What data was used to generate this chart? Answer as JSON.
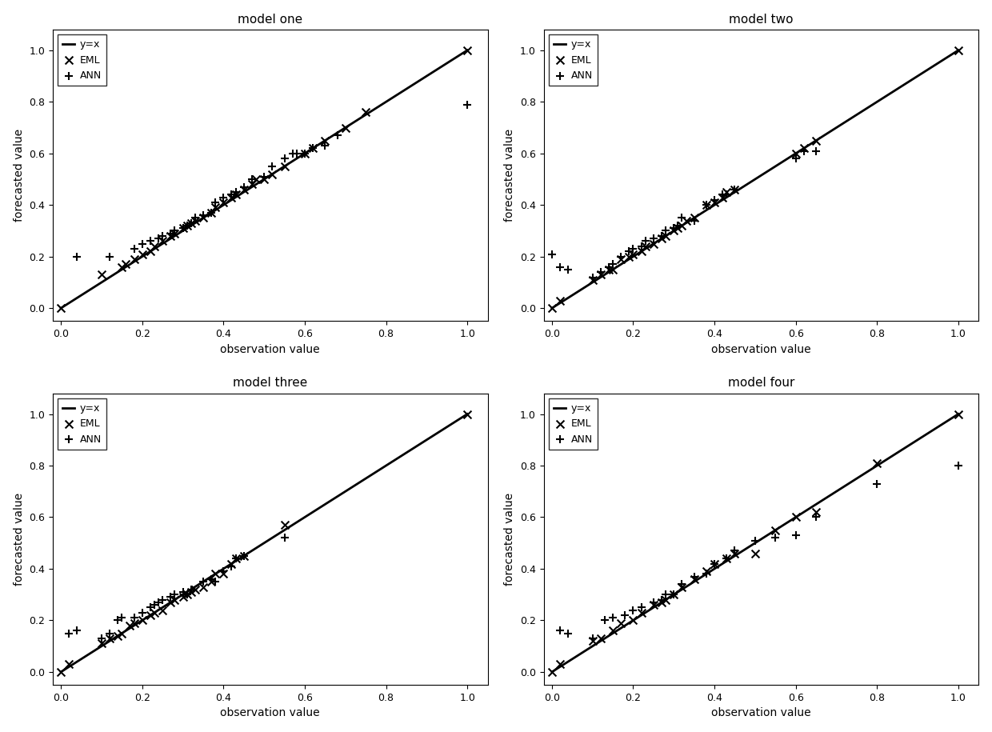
{
  "models": [
    "model one",
    "model two",
    "model three",
    "model four"
  ],
  "xlabel": "observation value",
  "ylabel": "forecasted value",
  "xlim": [
    -0.02,
    1.05
  ],
  "ylim": [
    -0.05,
    1.08
  ],
  "line_label": "y=x",
  "eml_label": "EML",
  "ann_label": "ANN",
  "model_one": {
    "eml_x": [
      0.0,
      0.1,
      0.15,
      0.16,
      0.18,
      0.2,
      0.22,
      0.23,
      0.25,
      0.27,
      0.28,
      0.3,
      0.31,
      0.32,
      0.33,
      0.35,
      0.37,
      0.38,
      0.4,
      0.42,
      0.43,
      0.45,
      0.47,
      0.48,
      0.5,
      0.52,
      0.55,
      0.6,
      0.62,
      0.65,
      0.7,
      0.75,
      1.0
    ],
    "eml_y": [
      0.0,
      0.13,
      0.16,
      0.17,
      0.19,
      0.21,
      0.22,
      0.24,
      0.26,
      0.28,
      0.29,
      0.31,
      0.32,
      0.33,
      0.34,
      0.35,
      0.37,
      0.39,
      0.41,
      0.43,
      0.44,
      0.46,
      0.48,
      0.5,
      0.5,
      0.52,
      0.55,
      0.6,
      0.62,
      0.65,
      0.7,
      0.76,
      1.0
    ],
    "ann_x": [
      0.04,
      0.12,
      0.18,
      0.2,
      0.22,
      0.24,
      0.25,
      0.27,
      0.28,
      0.3,
      0.31,
      0.32,
      0.33,
      0.35,
      0.37,
      0.38,
      0.4,
      0.42,
      0.43,
      0.45,
      0.47,
      0.5,
      0.52,
      0.55,
      0.57,
      0.58,
      0.6,
      0.62,
      0.65,
      0.68,
      1.0
    ],
    "ann_y": [
      0.2,
      0.2,
      0.23,
      0.25,
      0.26,
      0.27,
      0.28,
      0.29,
      0.3,
      0.31,
      0.32,
      0.33,
      0.35,
      0.36,
      0.37,
      0.41,
      0.43,
      0.44,
      0.45,
      0.47,
      0.5,
      0.51,
      0.55,
      0.58,
      0.6,
      0.6,
      0.6,
      0.62,
      0.63,
      0.67,
      0.79
    ]
  },
  "model_two": {
    "eml_x": [
      0.0,
      0.02,
      0.1,
      0.12,
      0.14,
      0.15,
      0.17,
      0.19,
      0.2,
      0.22,
      0.23,
      0.25,
      0.27,
      0.28,
      0.3,
      0.31,
      0.32,
      0.33,
      0.35,
      0.38,
      0.4,
      0.42,
      0.43,
      0.45,
      0.6,
      0.62,
      0.65,
      1.0
    ],
    "eml_y": [
      0.0,
      0.03,
      0.11,
      0.13,
      0.15,
      0.15,
      0.19,
      0.2,
      0.21,
      0.22,
      0.24,
      0.25,
      0.27,
      0.28,
      0.3,
      0.31,
      0.32,
      0.34,
      0.35,
      0.4,
      0.41,
      0.43,
      0.45,
      0.46,
      0.6,
      0.62,
      0.65,
      1.0
    ],
    "ann_x": [
      0.0,
      0.02,
      0.04,
      0.1,
      0.12,
      0.14,
      0.15,
      0.17,
      0.19,
      0.2,
      0.22,
      0.23,
      0.25,
      0.27,
      0.28,
      0.3,
      0.31,
      0.32,
      0.35,
      0.38,
      0.4,
      0.42,
      0.43,
      0.45,
      0.6,
      0.62,
      0.65
    ],
    "ann_y": [
      0.21,
      0.16,
      0.15,
      0.12,
      0.14,
      0.16,
      0.17,
      0.2,
      0.22,
      0.23,
      0.24,
      0.26,
      0.27,
      0.28,
      0.3,
      0.31,
      0.32,
      0.35,
      0.34,
      0.4,
      0.42,
      0.44,
      0.44,
      0.46,
      0.58,
      0.61,
      0.61
    ]
  },
  "model_three": {
    "eml_x": [
      0.0,
      0.02,
      0.1,
      0.12,
      0.14,
      0.15,
      0.17,
      0.18,
      0.2,
      0.22,
      0.23,
      0.25,
      0.27,
      0.28,
      0.3,
      0.31,
      0.32,
      0.33,
      0.35,
      0.37,
      0.38,
      0.4,
      0.42,
      0.43,
      0.45,
      0.55,
      1.0
    ],
    "eml_y": [
      0.0,
      0.03,
      0.11,
      0.13,
      0.14,
      0.15,
      0.18,
      0.19,
      0.2,
      0.22,
      0.23,
      0.24,
      0.27,
      0.28,
      0.29,
      0.3,
      0.31,
      0.32,
      0.33,
      0.35,
      0.38,
      0.38,
      0.42,
      0.44,
      0.45,
      0.57,
      1.0
    ],
    "ann_x": [
      0.02,
      0.04,
      0.1,
      0.12,
      0.14,
      0.15,
      0.18,
      0.2,
      0.22,
      0.23,
      0.24,
      0.25,
      0.27,
      0.28,
      0.3,
      0.31,
      0.32,
      0.35,
      0.37,
      0.38,
      0.4,
      0.42,
      0.43,
      0.45,
      0.55
    ],
    "ann_y": [
      0.15,
      0.16,
      0.13,
      0.15,
      0.2,
      0.21,
      0.21,
      0.23,
      0.25,
      0.26,
      0.27,
      0.28,
      0.29,
      0.3,
      0.31,
      0.3,
      0.32,
      0.35,
      0.36,
      0.35,
      0.39,
      0.41,
      0.44,
      0.45,
      0.52
    ]
  },
  "model_four": {
    "eml_x": [
      0.0,
      0.02,
      0.1,
      0.12,
      0.15,
      0.17,
      0.2,
      0.22,
      0.25,
      0.27,
      0.28,
      0.3,
      0.32,
      0.35,
      0.38,
      0.4,
      0.43,
      0.45,
      0.5,
      0.55,
      0.6,
      0.65,
      0.8,
      1.0
    ],
    "eml_y": [
      0.0,
      0.03,
      0.12,
      0.13,
      0.16,
      0.19,
      0.2,
      0.23,
      0.26,
      0.27,
      0.28,
      0.3,
      0.33,
      0.36,
      0.39,
      0.42,
      0.44,
      0.46,
      0.46,
      0.55,
      0.6,
      0.62,
      0.81,
      1.0
    ],
    "ann_x": [
      0.02,
      0.04,
      0.1,
      0.13,
      0.15,
      0.18,
      0.2,
      0.22,
      0.25,
      0.27,
      0.28,
      0.3,
      0.32,
      0.35,
      0.38,
      0.4,
      0.43,
      0.45,
      0.5,
      0.55,
      0.6,
      0.65,
      0.8,
      1.0
    ],
    "ann_y": [
      0.16,
      0.15,
      0.13,
      0.2,
      0.21,
      0.22,
      0.24,
      0.25,
      0.27,
      0.28,
      0.3,
      0.3,
      0.34,
      0.37,
      0.38,
      0.42,
      0.44,
      0.47,
      0.51,
      0.52,
      0.53,
      0.6,
      0.73,
      0.8
    ]
  },
  "line_color": "#000000",
  "marker_color": "#000000",
  "background_color": "#ffffff",
  "figsize": [
    12.4,
    9.15
  ],
  "dpi": 100
}
